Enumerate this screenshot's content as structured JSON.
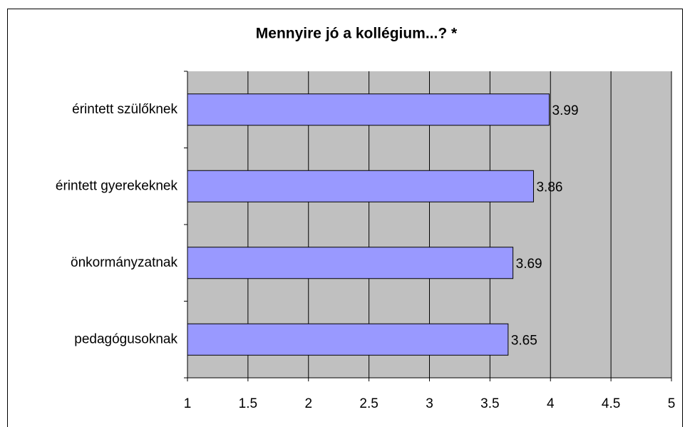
{
  "chart_data": {
    "type": "barh",
    "title": "Mennyire jó a kollégium...? *",
    "categories": [
      "érintett szülőknek",
      "érintett gyerekeknek",
      "önkormányzatnak",
      "pedagógusoknak"
    ],
    "values": [
      3.99,
      3.86,
      3.69,
      3.65
    ],
    "color": "#9999ff",
    "xlim": [
      1,
      5
    ],
    "xticks": [
      1,
      1.5,
      2,
      2.5,
      3,
      3.5,
      4,
      4.5,
      5
    ],
    "grid": true,
    "plot_background": "#c0c0c0"
  }
}
